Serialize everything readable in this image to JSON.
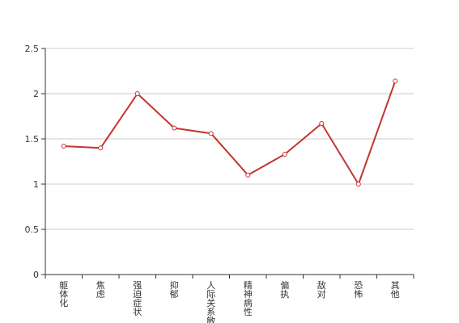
{
  "chart_data": {
    "type": "line",
    "categories": [
      "躯体化",
      "焦虑",
      "强迫症状",
      "抑郁",
      "人际关系敏感",
      "精神病性",
      "偏执",
      "敌对",
      "恐怖",
      "其他"
    ],
    "values": [
      1.42,
      1.4,
      2.0,
      1.62,
      1.56,
      1.1,
      1.33,
      1.67,
      1.0,
      2.14
    ],
    "ylim": [
      0,
      2.5
    ],
    "y_ticks": [
      "0",
      "0.5",
      "1",
      "1.5",
      "2",
      "2.5"
    ],
    "grid": true,
    "colors": {
      "line": "#c23531",
      "grid": "#cccccc",
      "axis": "#333333"
    }
  }
}
